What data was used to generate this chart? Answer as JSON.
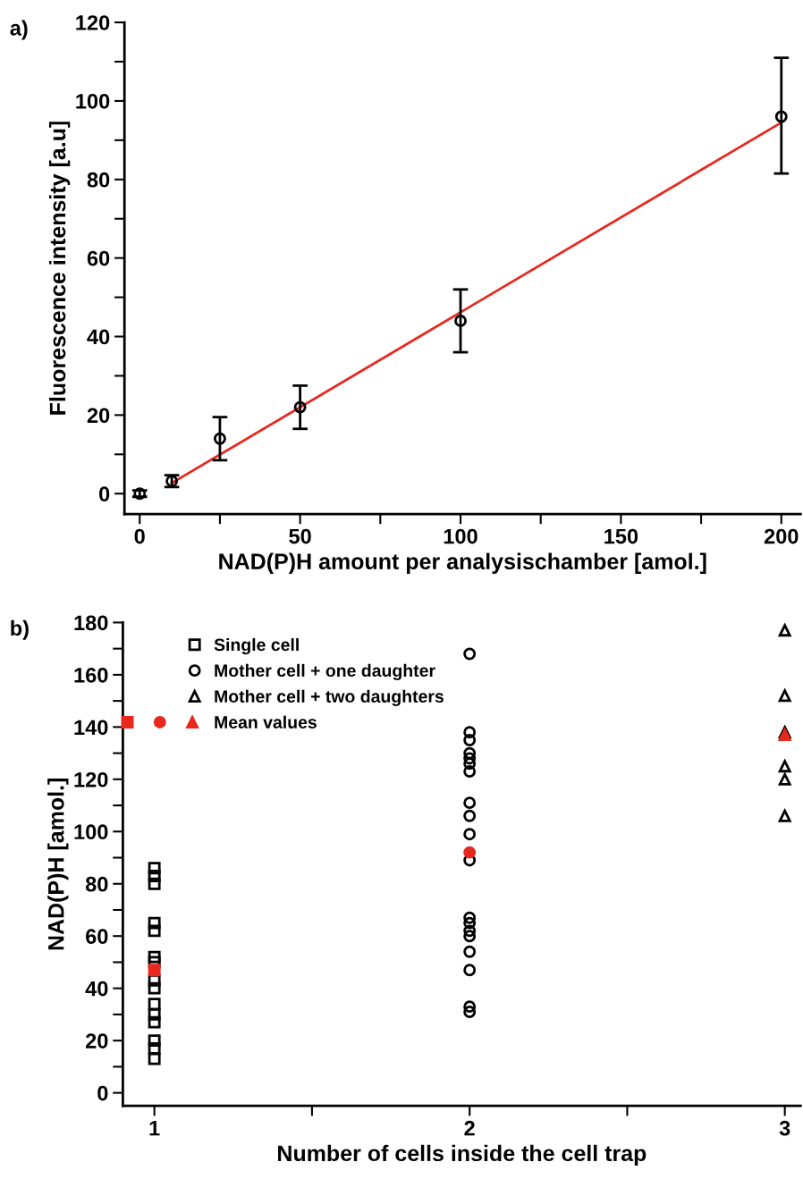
{
  "chart_data": [
    {
      "type": "scatter",
      "xlabel": "NAD(P)H amount per analysischamber [amol.]",
      "ylabel": "Fluorescence intensity [a.u]",
      "annotations": [
        "a)"
      ],
      "xlim": [
        -4.75,
        206
      ],
      "ylim": [
        -5.2,
        120
      ],
      "xticks": [
        0,
        {
          "value": 25,
          "label": null
        },
        50,
        {
          "value": 75,
          "label": null
        },
        100,
        {
          "value": 125,
          "label": null
        },
        150,
        {
          "value": 175,
          "label": null
        },
        200
      ],
      "yticks": [
        0,
        {
          "value": 10,
          "label": null
        },
        20,
        {
          "value": 30,
          "label": null
        },
        40,
        {
          "value": 50,
          "label": null
        },
        60,
        {
          "value": 70,
          "label": null
        },
        80,
        {
          "value": 90,
          "label": null
        },
        100,
        {
          "value": 110,
          "label": null
        },
        120
      ],
      "marker": "circle",
      "grid": false,
      "legend": false,
      "series": [
        {
          "type": "scatter",
          "color": "#000000",
          "x": [
            0,
            10,
            25,
            50,
            100,
            200
          ],
          "values": [
            0,
            3.2,
            14,
            22,
            44,
            96
          ],
          "errors": [
            0.8,
            1.5,
            [
              8.5,
              19.5
            ],
            [
              16.5,
              27.5
            ],
            [
              36,
              52
            ],
            [
              81.5,
              111
            ]
          ]
        },
        {
          "type": "line",
          "color": "#e8281e",
          "x": [
            10,
            200
          ],
          "values": [
            2.7,
            94.5
          ],
          "marker": "none"
        }
      ]
    },
    {
      "type": "scatter",
      "xlabel": "Number of cells inside the cell trap",
      "ylabel": "NAD(P)H [amol.]",
      "annotations": [
        "b)"
      ],
      "xlim": [
        0.9,
        3.05
      ],
      "ylim": [
        -5,
        180
      ],
      "xticks": [
        1,
        {
          "value": 1.5,
          "label": null
        },
        2,
        {
          "value": 2.5,
          "label": null
        },
        3
      ],
      "yticks": [
        0,
        {
          "value": 10,
          "label": null
        },
        20,
        {
          "value": 30,
          "label": null
        },
        40,
        {
          "value": 50,
          "label": null
        },
        60,
        {
          "value": 70,
          "label": null
        },
        80,
        {
          "value": 90,
          "label": null
        },
        100,
        {
          "value": 110,
          "label": null
        },
        120,
        {
          "value": 130,
          "label": null
        },
        140,
        {
          "value": 150,
          "label": null
        },
        160,
        {
          "value": 170,
          "label": null
        },
        180
      ],
      "grid": false,
      "legend": "top left",
      "series": [
        {
          "name": "Single cell",
          "color": "#000000",
          "marker": "square",
          "x": [
            1,
            1,
            1,
            1,
            1,
            1,
            1,
            1,
            1,
            1,
            1,
            1,
            1,
            1,
            1
          ],
          "values": [
            86,
            83,
            80,
            65,
            62,
            52,
            50,
            43,
            40,
            34,
            30,
            27,
            20,
            17,
            13
          ]
        },
        {
          "name": "Mother cell + one daughter",
          "color": "#000000",
          "marker": "circle",
          "x": [
            2,
            2,
            2,
            2,
            2,
            2,
            2,
            2,
            2,
            2,
            2,
            2,
            2,
            2,
            2,
            2,
            2,
            2,
            2
          ],
          "values": [
            168,
            138,
            135,
            130,
            128,
            126,
            123,
            111,
            106,
            99,
            89,
            67,
            65,
            62,
            60,
            54,
            47,
            33,
            31
          ]
        },
        {
          "name": "Mother cell + two daughters",
          "color": "#000000",
          "marker": "triangle",
          "x": [
            3,
            3,
            3,
            3,
            3,
            3
          ],
          "values": [
            177,
            152,
            138,
            125,
            120,
            106
          ]
        },
        {
          "name": "Mean values",
          "color": "#e8281e",
          "marker": [
            "square",
            "circle",
            "triangle"
          ],
          "x": [
            1,
            2,
            3
          ],
          "values": [
            47,
            92,
            137
          ]
        }
      ]
    }
  ]
}
